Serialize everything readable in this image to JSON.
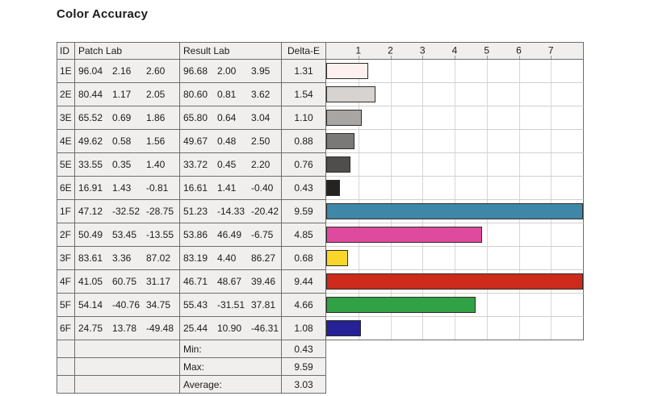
{
  "title": "Color Accuracy",
  "table": {
    "headers": {
      "id": "ID",
      "patch": "Patch Lab",
      "result": "Result Lab",
      "delta": "Delta-E"
    },
    "rows": [
      {
        "id": "1E",
        "patch": [
          "96.04",
          "2.16",
          "2.60"
        ],
        "result": [
          "96.68",
          "2.00",
          "3.95"
        ],
        "delta": "1.31",
        "value": 1.31,
        "color": "#fdf1ef"
      },
      {
        "id": "2E",
        "patch": [
          "80.44",
          "1.17",
          "2.05"
        ],
        "result": [
          "80.60",
          "0.81",
          "3.62"
        ],
        "delta": "1.54",
        "value": 1.54,
        "color": "#d7d3d0"
      },
      {
        "id": "3E",
        "patch": [
          "65.52",
          "0.69",
          "1.86"
        ],
        "result": [
          "65.80",
          "0.64",
          "3.04"
        ],
        "delta": "1.10",
        "value": 1.1,
        "color": "#a8a5a2"
      },
      {
        "id": "4E",
        "patch": [
          "49.62",
          "0.58",
          "1.56"
        ],
        "result": [
          "49.67",
          "0.48",
          "2.50"
        ],
        "delta": "0.88",
        "value": 0.88,
        "color": "#7b7977"
      },
      {
        "id": "5E",
        "patch": [
          "33.55",
          "0.35",
          "1.40"
        ],
        "result": [
          "33.72",
          "0.45",
          "2.20"
        ],
        "delta": "0.76",
        "value": 0.76,
        "color": "#504e4d"
      },
      {
        "id": "6E",
        "patch": [
          "16.91",
          "1.43",
          "-0.81"
        ],
        "result": [
          "16.61",
          "1.41",
          "-0.40"
        ],
        "delta": "0.43",
        "value": 0.43,
        "color": "#242322"
      },
      {
        "id": "1F",
        "patch": [
          "47.12",
          "-32.52",
          "-28.75"
        ],
        "result": [
          "51.23",
          "-14.33",
          "-20.42"
        ],
        "delta": "9.59",
        "value": 9.59,
        "color": "#3f87a6"
      },
      {
        "id": "2F",
        "patch": [
          "50.49",
          "53.45",
          "-13.55"
        ],
        "result": [
          "53.86",
          "46.49",
          "-6.75"
        ],
        "delta": "4.85",
        "value": 4.85,
        "color": "#de4a9d"
      },
      {
        "id": "3F",
        "patch": [
          "83.61",
          "3.36",
          "87.02"
        ],
        "result": [
          "83.19",
          "4.40",
          "86.27"
        ],
        "delta": "0.68",
        "value": 0.68,
        "color": "#f9d62a"
      },
      {
        "id": "4F",
        "patch": [
          "41.05",
          "60.75",
          "31.17"
        ],
        "result": [
          "46.71",
          "48.67",
          "39.46"
        ],
        "delta": "9.44",
        "value": 9.44,
        "color": "#cd2a1b"
      },
      {
        "id": "5F",
        "patch": [
          "54.14",
          "-40.76",
          "34.75"
        ],
        "result": [
          "55.43",
          "-31.51",
          "37.81"
        ],
        "delta": "4.66",
        "value": 4.66,
        "color": "#31a146"
      },
      {
        "id": "6F",
        "patch": [
          "24.75",
          "13.78",
          "-49.48"
        ],
        "result": [
          "25.44",
          "10.90",
          "-46.31"
        ],
        "delta": "1.08",
        "value": 1.08,
        "color": "#262195"
      }
    ],
    "summary": [
      {
        "label": "Min:",
        "value": "0.43"
      },
      {
        "label": "Max:",
        "value": "9.59"
      },
      {
        "label": "Average:",
        "value": "3.03"
      }
    ]
  },
  "chart_data": {
    "type": "bar",
    "orientation": "horizontal",
    "title": "Color Accuracy",
    "xlabel": "Delta-E",
    "categories": [
      "1E",
      "2E",
      "3E",
      "4E",
      "5E",
      "6E",
      "1F",
      "2F",
      "3F",
      "4F",
      "5F",
      "6F"
    ],
    "values": [
      1.31,
      1.54,
      1.1,
      0.88,
      0.76,
      0.43,
      9.59,
      4.85,
      0.68,
      9.44,
      4.66,
      1.08
    ],
    "bar_colors": [
      "#fdf1ef",
      "#d7d3d0",
      "#a8a5a2",
      "#7b7977",
      "#504e4d",
      "#242322",
      "#3f87a6",
      "#de4a9d",
      "#f9d62a",
      "#cd2a1b",
      "#31a146",
      "#262195"
    ],
    "axis_ticks": [
      1,
      2,
      3,
      4,
      5,
      6,
      7
    ],
    "axis_max": 8,
    "xlim": [
      0,
      8
    ],
    "grid": true,
    "gridline_color": "#d9d7d5",
    "summary": {
      "min": 0.43,
      "max": 9.59,
      "average": 3.03
    }
  }
}
